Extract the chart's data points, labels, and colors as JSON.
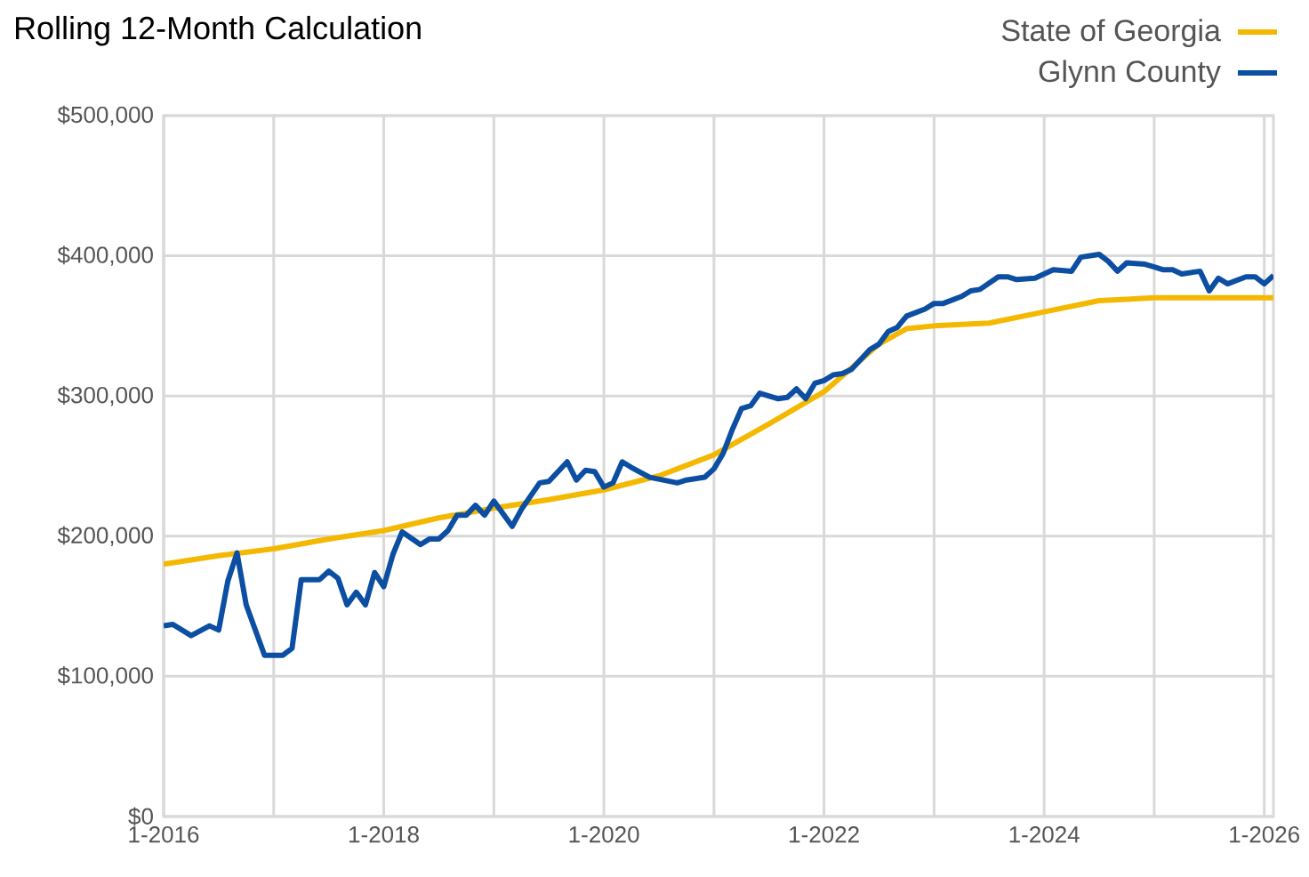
{
  "chart_data": {
    "type": "line",
    "title": "Rolling 12-Month Calculation",
    "legend": "top right",
    "grid": true,
    "line_style": "solid",
    "marker": "none",
    "xlim": [
      "2016-01",
      "2026-02"
    ],
    "ylim": [
      0,
      500000
    ],
    "xticks": [
      {
        "value": "2016-01",
        "label": "1-2016"
      },
      {
        "value": "2017-01",
        "label": null
      },
      {
        "value": "2018-01",
        "label": "1-2018"
      },
      {
        "value": "2019-01",
        "label": null
      },
      {
        "value": "2020-01",
        "label": "1-2020"
      },
      {
        "value": "2021-01",
        "label": null
      },
      {
        "value": "2022-01",
        "label": "1-2022"
      },
      {
        "value": "2023-01",
        "label": null
      },
      {
        "value": "2024-01",
        "label": "1-2024"
      },
      {
        "value": "2025-01",
        "label": null
      },
      {
        "value": "2026-01",
        "label": "1-2026"
      }
    ],
    "yticks": [
      {
        "value": 0,
        "label": "$0"
      },
      {
        "value": 100000,
        "label": "$100,000"
      },
      {
        "value": 200000,
        "label": "$200,000"
      },
      {
        "value": 300000,
        "label": "$300,000"
      },
      {
        "value": 400000,
        "label": "$400,000"
      },
      {
        "value": 500000,
        "label": "$500,000"
      }
    ],
    "series": [
      {
        "name": "State of Georgia",
        "color": "#f5b800",
        "x": [
          "2016-01",
          "2016-07",
          "2017-01",
          "2017-07",
          "2018-01",
          "2018-07",
          "2019-01",
          "2019-07",
          "2020-01",
          "2020-07",
          "2021-01",
          "2021-07",
          "2022-01",
          "2022-04",
          "2022-07",
          "2022-10",
          "2023-01",
          "2023-07",
          "2024-01",
          "2024-07",
          "2025-01",
          "2026-02"
        ],
        "values": [
          180000,
          186000,
          191000,
          198000,
          204000,
          213000,
          220000,
          226000,
          233000,
          243000,
          258000,
          280000,
          303000,
          320000,
          337000,
          348000,
          350000,
          352000,
          360000,
          368000,
          370000,
          370000
        ]
      },
      {
        "name": "Glynn County",
        "color": "#0b4ea2",
        "x": [
          "2016-01",
          "2016-02",
          "2016-04",
          "2016-06",
          "2016-07",
          "2016-08",
          "2016-09",
          "2016-10",
          "2016-12",
          "2017-02",
          "2017-03",
          "2017-04",
          "2017-06",
          "2017-07",
          "2017-08",
          "2017-09",
          "2017-10",
          "2017-11",
          "2017-12",
          "2018-01",
          "2018-02",
          "2018-03",
          "2018-05",
          "2018-06",
          "2018-07",
          "2018-08",
          "2018-09",
          "2018-10",
          "2018-11",
          "2018-12",
          "2019-01",
          "2019-03",
          "2019-04",
          "2019-06",
          "2019-07",
          "2019-09",
          "2019-10",
          "2019-11",
          "2019-12",
          "2020-01",
          "2020-02",
          "2020-03",
          "2020-04",
          "2020-06",
          "2020-09",
          "2020-10",
          "2020-12",
          "2021-01",
          "2021-02",
          "2021-03",
          "2021-04",
          "2021-05",
          "2021-06",
          "2021-08",
          "2021-09",
          "2021-10",
          "2021-11",
          "2021-12",
          "2022-01",
          "2022-02",
          "2022-03",
          "2022-04",
          "2022-06",
          "2022-07",
          "2022-08",
          "2022-09",
          "2022-10",
          "2022-12",
          "2023-01",
          "2023-02",
          "2023-04",
          "2023-05",
          "2023-06",
          "2023-08",
          "2023-09",
          "2023-10",
          "2023-12",
          "2024-02",
          "2024-04",
          "2024-05",
          "2024-07",
          "2024-08",
          "2024-09",
          "2024-10",
          "2024-12",
          "2025-01",
          "2025-02",
          "2025-03",
          "2025-04",
          "2025-06",
          "2025-07",
          "2025-08",
          "2025-09",
          "2025-11",
          "2025-12",
          "2026-01",
          "2026-02"
        ],
        "values": [
          136000,
          137000,
          129000,
          136000,
          133000,
          168000,
          188000,
          151000,
          115000,
          115000,
          120000,
          169000,
          169000,
          175000,
          170000,
          151000,
          160000,
          151000,
          174000,
          164000,
          187000,
          203000,
          194000,
          198000,
          198000,
          204000,
          215000,
          215000,
          222000,
          215000,
          225000,
          207000,
          219000,
          238000,
          239000,
          253000,
          240000,
          247000,
          246000,
          235000,
          238000,
          253000,
          249000,
          242000,
          238000,
          240000,
          242000,
          248000,
          259000,
          276000,
          291000,
          293000,
          302000,
          298000,
          299000,
          305000,
          298000,
          309000,
          311000,
          315000,
          316000,
          319000,
          333000,
          337000,
          346000,
          349000,
          357000,
          362000,
          366000,
          366000,
          371000,
          375000,
          376000,
          385000,
          385000,
          383000,
          384000,
          390000,
          389000,
          399000,
          401000,
          396000,
          389000,
          395000,
          394000,
          392000,
          390000,
          390000,
          387000,
          389000,
          375000,
          384000,
          380000,
          385000,
          385000,
          380000,
          386000
        ]
      }
    ]
  }
}
